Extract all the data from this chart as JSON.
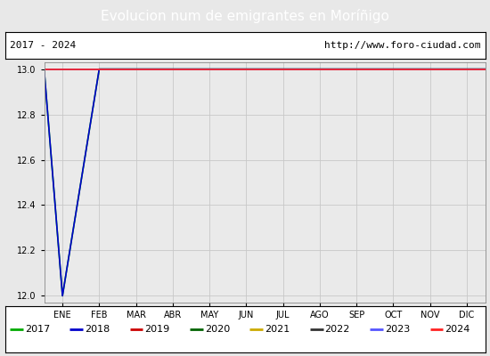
{
  "title": "Evolucion num de emigrantes en Moríñigo",
  "title_bg_color": "#4d7ebf",
  "title_text_color": "#ffffff",
  "subtitle_left": "2017 - 2024",
  "subtitle_right": "http://www.foro-ciudad.com",
  "x_labels": [
    "ENE",
    "FEB",
    "MAR",
    "ABR",
    "MAY",
    "JUN",
    "JUL",
    "AGO",
    "SEP",
    "OCT",
    "NOV",
    "DIC"
  ],
  "ylim": [
    11.97,
    13.03
  ],
  "yticks": [
    12.0,
    12.2,
    12.4,
    12.6,
    12.8,
    13.0
  ],
  "bg_color": "#e8e8e8",
  "plot_bg_color": "#eaeaea",
  "grid_color": "#c8c8c8",
  "series": [
    {
      "label": "2017",
      "color": "#00aa00",
      "linewidth": 1.2,
      "x": [
        -0.5,
        0,
        1,
        2,
        3,
        4,
        5,
        6,
        7,
        8,
        9,
        10,
        11,
        11.5
      ],
      "y": [
        13.0,
        12.0,
        13.0,
        13.0,
        13.0,
        13.0,
        13.0,
        13.0,
        13.0,
        13.0,
        13.0,
        13.0,
        13.0,
        13.0
      ]
    },
    {
      "label": "2018",
      "color": "#0000cc",
      "linewidth": 1.2,
      "x": [
        -0.5,
        0,
        1,
        2,
        3,
        4,
        5,
        6,
        7,
        8,
        9,
        10,
        11,
        11.5
      ],
      "y": [
        13.0,
        12.0,
        13.0,
        13.0,
        13.0,
        13.0,
        13.0,
        13.0,
        13.0,
        13.0,
        13.0,
        13.0,
        13.0,
        13.0
      ]
    },
    {
      "label": "2019",
      "color": "#cc0000",
      "linewidth": 1.2,
      "x": [
        -0.5,
        0,
        1,
        2,
        3,
        4,
        5,
        6,
        7,
        8,
        9,
        10,
        11,
        11.5
      ],
      "y": [
        13.0,
        13.0,
        13.0,
        13.0,
        13.0,
        13.0,
        13.0,
        13.0,
        13.0,
        13.0,
        13.0,
        13.0,
        13.0,
        13.0
      ]
    },
    {
      "label": "2020",
      "color": "#006400",
      "linewidth": 1.2,
      "x": [
        -0.5,
        0,
        1,
        2,
        3,
        4,
        5,
        6,
        7,
        8,
        9,
        10,
        11,
        11.5
      ],
      "y": [
        13.0,
        13.0,
        13.0,
        13.0,
        13.0,
        13.0,
        13.0,
        13.0,
        13.0,
        13.0,
        13.0,
        13.0,
        13.0,
        13.0
      ]
    },
    {
      "label": "2021",
      "color": "#ccaa00",
      "linewidth": 1.2,
      "x": [
        -0.5,
        0,
        1,
        2,
        3,
        4,
        5,
        6,
        7,
        8,
        9,
        10,
        11,
        11.5
      ],
      "y": [
        13.0,
        13.0,
        13.0,
        13.0,
        13.0,
        13.0,
        13.0,
        13.0,
        13.0,
        13.0,
        13.0,
        13.0,
        13.0,
        13.0
      ]
    },
    {
      "label": "2022",
      "color": "#333333",
      "linewidth": 1.2,
      "x": [
        -0.5,
        0,
        1,
        2,
        3,
        4,
        5,
        6,
        7,
        8,
        9,
        10,
        11,
        11.5
      ],
      "y": [
        13.0,
        13.0,
        13.0,
        13.0,
        13.0,
        13.0,
        13.0,
        13.0,
        13.0,
        13.0,
        13.0,
        13.0,
        13.0,
        13.0
      ]
    },
    {
      "label": "2023",
      "color": "#5555ff",
      "linewidth": 1.2,
      "x": [
        -0.5,
        0,
        1,
        2,
        3,
        4,
        5,
        6,
        7,
        8,
        9,
        10,
        11,
        11.5
      ],
      "y": [
        13.0,
        13.0,
        13.0,
        13.0,
        13.0,
        13.0,
        13.0,
        13.0,
        13.0,
        13.0,
        13.0,
        13.0,
        13.0,
        13.0
      ]
    },
    {
      "label": "2024",
      "color": "#ff2222",
      "linewidth": 1.2,
      "x": [
        -0.5,
        0,
        1,
        2,
        3,
        4,
        5,
        6,
        7,
        8,
        9,
        10,
        11,
        11.5
      ],
      "y": [
        13.0,
        13.0,
        13.0,
        13.0,
        13.0,
        13.0,
        13.0,
        13.0,
        13.0,
        13.0,
        13.0,
        13.0,
        13.0,
        13.0
      ]
    }
  ],
  "legend_entries": [
    {
      "label": "2017",
      "color": "#00aa00"
    },
    {
      "label": "2018",
      "color": "#0000cc"
    },
    {
      "label": "2019",
      "color": "#cc0000"
    },
    {
      "label": "2020",
      "color": "#006400"
    },
    {
      "label": "2021",
      "color": "#ccaa00"
    },
    {
      "label": "2022",
      "color": "#333333"
    },
    {
      "label": "2023",
      "color": "#5555ff"
    },
    {
      "label": "2024",
      "color": "#ff2222"
    }
  ]
}
